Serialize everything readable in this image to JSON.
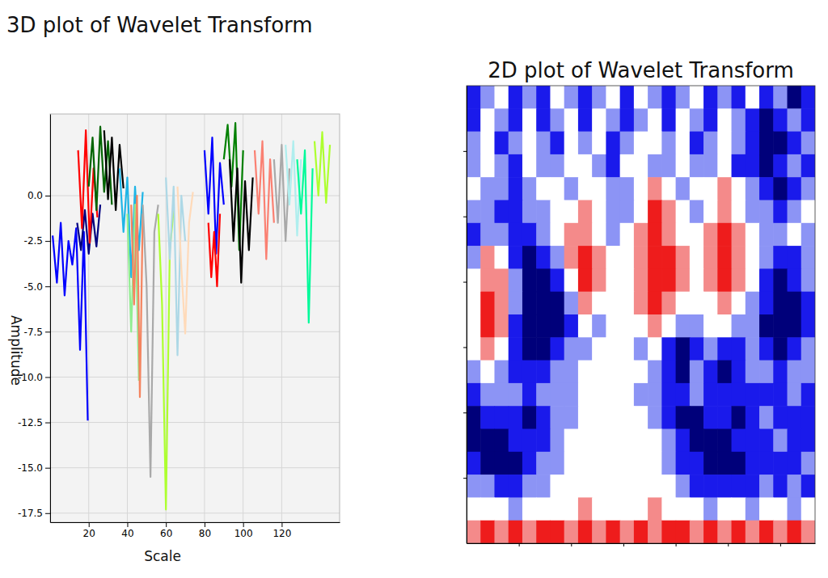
{
  "chart_data": [
    {
      "type": "line",
      "title": "3D plot of Wavelet Transform",
      "x_label": "Scale",
      "y_label": "Amplitude",
      "xlim": [
        0,
        150
      ],
      "ylim": [
        -18,
        4.5
      ],
      "xticks": [
        20,
        40,
        60,
        80,
        100,
        120
      ],
      "yticks": [
        {
          "value": 0,
          "label": "0.0"
        },
        -2.5,
        {
          "value": -5,
          "label": "-5.0"
        },
        -7.5,
        {
          "value": -10,
          "label": "-10.0"
        },
        -12.5,
        {
          "value": -15,
          "label": "-15.0"
        },
        -17.5
      ],
      "grid": true,
      "series": [
        {
          "color": "#0000ff",
          "x": [
            1.3,
            3.5,
            5.5,
            7.5,
            9.5,
            11.5,
            13.5,
            15.5,
            17.5,
            19.5
          ],
          "values": [
            -2.2,
            -4.8,
            -1.5,
            -5.5,
            -2.5,
            -3.8,
            -1.8,
            -8.5,
            -2.0,
            -12.4
          ]
        },
        {
          "color": "#000080",
          "x": [
            14,
            16,
            18,
            20,
            22,
            24,
            26
          ],
          "values": [
            -1.5,
            -3.0,
            -0.8,
            -3.2,
            -1.0,
            -2.8,
            -0.5
          ]
        },
        {
          "color": "#ff0000",
          "x": [
            14.5,
            16.5,
            18.5,
            20.5,
            22.5,
            24.5
          ],
          "values": [
            2.5,
            -1.8,
            3.6,
            -2.6,
            1.5,
            -1.2
          ]
        },
        {
          "color": "#006400",
          "x": [
            20,
            22,
            24,
            26,
            28,
            30,
            32
          ],
          "values": [
            0.5,
            3.2,
            -0.8,
            3.8,
            0.2,
            3.0,
            -0.5
          ]
        },
        {
          "color": "#000000",
          "x": [
            28,
            30,
            32,
            34,
            36,
            38
          ],
          "values": [
            3.6,
            -0.2,
            3.2,
            -0.8,
            2.8,
            0.4
          ]
        },
        {
          "color": "#1fb5e6",
          "x": [
            36,
            38,
            40,
            42,
            44,
            46,
            48
          ],
          "values": [
            1.5,
            -2.0,
            1.0,
            -4.5,
            0.5,
            -3.0,
            0.2
          ]
        },
        {
          "color": "#90ee90",
          "x": [
            40,
            42,
            44,
            46
          ],
          "values": [
            -1.0,
            -7.5,
            -0.5,
            -10.2
          ]
        },
        {
          "color": "#f4845f",
          "x": [
            42,
            43.5,
            45,
            46.5,
            48
          ],
          "values": [
            -0.5,
            -6.0,
            0.0,
            -11.1,
            -1.0
          ]
        },
        {
          "color": "#a9a9a9",
          "x": [
            48,
            50,
            52,
            54,
            56
          ],
          "values": [
            -0.5,
            -5.0,
            -15.5,
            -2.0,
            -0.5
          ]
        },
        {
          "color": "#adff2f",
          "x": [
            56,
            58,
            60,
            62,
            64
          ],
          "values": [
            -1.0,
            -6.0,
            -17.3,
            -3.0,
            -0.8
          ]
        },
        {
          "color": "#add8e6",
          "x": [
            60,
            62,
            64,
            66,
            68,
            70
          ],
          "values": [
            1.0,
            -3.5,
            0.5,
            -8.8,
            0.0,
            -2.5
          ]
        },
        {
          "color": "#ffdab9",
          "x": [
            66,
            68,
            70,
            72,
            74
          ],
          "values": [
            0.5,
            -4.0,
            -7.6,
            -1.5,
            0.2
          ]
        },
        {
          "color": "#0000ff",
          "x": [
            80,
            82,
            84,
            86,
            88,
            90
          ],
          "values": [
            2.5,
            -1.0,
            3.2,
            -3.2,
            1.8,
            -0.5
          ]
        },
        {
          "color": "#ff0000",
          "x": [
            82,
            83.5,
            85,
            86.5,
            88
          ],
          "values": [
            -1.5,
            -4.5,
            -2.0,
            -5.0,
            -1.0
          ]
        },
        {
          "color": "#008000",
          "x": [
            90,
            92,
            94,
            96,
            98,
            100
          ],
          "values": [
            2.0,
            3.9,
            0.5,
            4.0,
            -3.0,
            2.5
          ]
        },
        {
          "color": "#000000",
          "x": [
            93,
            95,
            97,
            99,
            101,
            103,
            105
          ],
          "values": [
            2.0,
            -2.5,
            1.5,
            -4.8,
            0.8,
            -3.0,
            1.0
          ]
        },
        {
          "color": "#fa8072",
          "x": [
            106,
            108,
            110,
            112,
            114,
            116
          ],
          "values": [
            2.5,
            -1.0,
            3.0,
            -3.5,
            2.0,
            -1.5
          ]
        },
        {
          "color": "#a9a9a9",
          "x": [
            116,
            118,
            120,
            122,
            124
          ],
          "values": [
            2.0,
            -1.5,
            2.8,
            -2.5,
            1.5
          ]
        },
        {
          "color": "#afeeee",
          "x": [
            122,
            124,
            126,
            128,
            130
          ],
          "values": [
            2.8,
            -0.5,
            3.0,
            -2.2,
            2.0
          ]
        },
        {
          "color": "#00fa9a",
          "x": [
            128,
            130,
            132,
            134,
            136
          ],
          "values": [
            2.0,
            -1.0,
            2.5,
            -7.0,
            1.5
          ]
        },
        {
          "color": "#adff2f",
          "x": [
            137,
            139,
            141,
            143,
            145
          ],
          "values": [
            3.0,
            0.0,
            3.5,
            -0.4,
            2.8
          ]
        }
      ]
    },
    {
      "type": "heatmap",
      "title": "2D plot of Wavelet Transform",
      "xlim": [
        0,
        1000
      ],
      "ylim": [
        0,
        140
      ],
      "xticks": [
        150,
        300,
        450,
        600,
        750,
        900
      ],
      "yticks": [
        20,
        40,
        60,
        80,
        100,
        120
      ],
      "tick_labels": false,
      "zlim": [
        0,
        5
      ],
      "colors": [
        "#00007a",
        "#1a1aeb",
        "#8c94f5",
        "#ffffff",
        "#f48a8a",
        "#ee1c1c"
      ],
      "cells": [
        [
          1,
          2,
          3,
          1,
          2,
          1,
          3,
          2,
          1,
          2,
          3,
          1,
          3,
          2,
          1,
          2,
          3,
          1,
          2,
          1,
          3,
          1,
          2,
          0,
          1
        ],
        [
          1,
          3,
          2,
          1,
          3,
          1,
          2,
          3,
          1,
          3,
          2,
          1,
          2,
          3,
          1,
          3,
          2,
          1,
          3,
          2,
          1,
          0,
          1,
          2,
          1
        ],
        [
          2,
          3,
          1,
          2,
          3,
          2,
          1,
          3,
          2,
          3,
          1,
          2,
          3,
          3,
          2,
          3,
          1,
          2,
          3,
          2,
          1,
          0,
          0,
          1,
          2
        ],
        [
          2,
          3,
          2,
          1,
          3,
          2,
          2,
          3,
          3,
          2,
          1,
          3,
          3,
          2,
          2,
          3,
          2,
          2,
          3,
          1,
          1,
          0,
          1,
          2,
          1
        ],
        [
          3,
          2,
          2,
          1,
          2,
          3,
          3,
          2,
          3,
          3,
          2,
          2,
          3,
          4,
          3,
          2,
          3,
          3,
          4,
          3,
          2,
          1,
          0,
          1,
          2
        ],
        [
          2,
          2,
          1,
          1,
          2,
          2,
          3,
          3,
          4,
          3,
          2,
          2,
          3,
          5,
          4,
          3,
          2,
          3,
          4,
          3,
          2,
          2,
          1,
          2,
          3
        ],
        [
          1,
          2,
          2,
          1,
          1,
          2,
          3,
          4,
          4,
          3,
          2,
          3,
          4,
          5,
          4,
          3,
          3,
          4,
          5,
          4,
          3,
          2,
          2,
          3,
          2
        ],
        [
          2,
          4,
          3,
          1,
          0,
          1,
          2,
          4,
          5,
          4,
          3,
          3,
          4,
          5,
          5,
          4,
          3,
          4,
          5,
          4,
          3,
          2,
          1,
          1,
          2
        ],
        [
          3,
          4,
          4,
          2,
          0,
          0,
          1,
          3,
          5,
          4,
          3,
          3,
          4,
          5,
          5,
          4,
          3,
          4,
          5,
          4,
          3,
          1,
          0,
          1,
          2
        ],
        [
          3,
          5,
          4,
          2,
          0,
          0,
          0,
          2,
          4,
          3,
          3,
          3,
          4,
          5,
          4,
          3,
          3,
          3,
          4,
          3,
          2,
          1,
          0,
          0,
          1
        ],
        [
          3,
          5,
          4,
          1,
          0,
          0,
          0,
          1,
          3,
          2,
          3,
          3,
          3,
          4,
          3,
          2,
          2,
          3,
          3,
          2,
          2,
          0,
          0,
          0,
          1
        ],
        [
          3,
          4,
          3,
          1,
          0,
          0,
          1,
          2,
          2,
          3,
          3,
          3,
          2,
          3,
          1,
          0,
          1,
          2,
          1,
          1,
          2,
          1,
          0,
          1,
          2
        ],
        [
          2,
          3,
          2,
          1,
          1,
          1,
          2,
          2,
          3,
          3,
          3,
          3,
          3,
          2,
          1,
          0,
          2,
          1,
          0,
          1,
          2,
          2,
          1,
          2,
          2
        ],
        [
          1,
          2,
          2,
          2,
          1,
          2,
          2,
          2,
          3,
          3,
          3,
          3,
          2,
          2,
          1,
          1,
          2,
          1,
          1,
          1,
          1,
          1,
          1,
          2,
          1
        ],
        [
          0,
          1,
          1,
          1,
          0,
          1,
          2,
          2,
          3,
          3,
          3,
          3,
          3,
          2,
          1,
          0,
          0,
          1,
          1,
          0,
          1,
          2,
          1,
          1,
          1
        ],
        [
          0,
          0,
          0,
          1,
          1,
          1,
          2,
          3,
          3,
          3,
          3,
          3,
          3,
          3,
          2,
          1,
          0,
          0,
          0,
          1,
          1,
          1,
          2,
          1,
          1
        ],
        [
          1,
          0,
          0,
          0,
          1,
          2,
          2,
          3,
          3,
          3,
          3,
          3,
          3,
          3,
          2,
          1,
          1,
          0,
          0,
          0,
          1,
          1,
          1,
          1,
          2
        ],
        [
          2,
          2,
          1,
          1,
          2,
          2,
          3,
          3,
          3,
          3,
          3,
          3,
          3,
          3,
          3,
          2,
          1,
          1,
          1,
          1,
          1,
          2,
          1,
          2,
          1
        ],
        [
          3,
          3,
          3,
          2,
          3,
          3,
          3,
          3,
          4,
          3,
          3,
          3,
          3,
          4,
          3,
          3,
          3,
          2,
          3,
          3,
          2,
          3,
          3,
          2,
          3
        ],
        [
          4,
          5,
          4,
          5,
          4,
          5,
          5,
          4,
          5,
          4,
          5,
          4,
          5,
          4,
          5,
          5,
          4,
          5,
          4,
          5,
          4,
          5,
          4,
          5,
          4
        ]
      ]
    }
  ]
}
